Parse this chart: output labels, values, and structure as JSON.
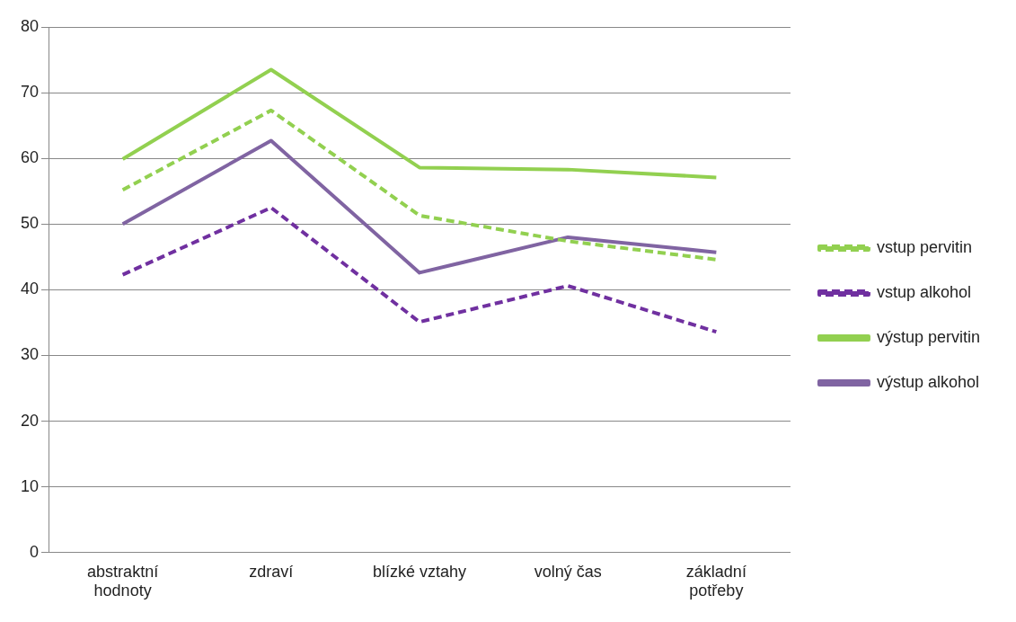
{
  "chart_data": {
    "type": "line",
    "categories": [
      "abstraktní hodnoty",
      "zdraví",
      "blízké vztahy",
      "volný čas",
      "základní potřeby"
    ],
    "series": [
      {
        "name": "vstup pervitin",
        "color": "#92d050",
        "line_style": "dashed",
        "values": [
          55.2,
          67.3,
          51.3,
          47.4,
          44.6
        ]
      },
      {
        "name": "vstup alkohol",
        "color": "#7030a0",
        "line_style": "dashed",
        "values": [
          42.3,
          52.5,
          35.1,
          40.6,
          33.6
        ]
      },
      {
        "name": "výstup pervitin",
        "color": "#92d050",
        "line_style": "solid",
        "values": [
          59.9,
          73.5,
          58.6,
          58.3,
          57.1
        ]
      },
      {
        "name": "výstup alkohol",
        "color": "#8064a2",
        "line_style": "solid",
        "values": [
          50.0,
          62.7,
          42.6,
          48.0,
          45.7
        ]
      }
    ],
    "ylim": [
      0,
      80
    ],
    "yticks": [
      0,
      10,
      20,
      30,
      40,
      50,
      60,
      70,
      80
    ],
    "grid": "y",
    "legend": "right",
    "marker": "none"
  }
}
